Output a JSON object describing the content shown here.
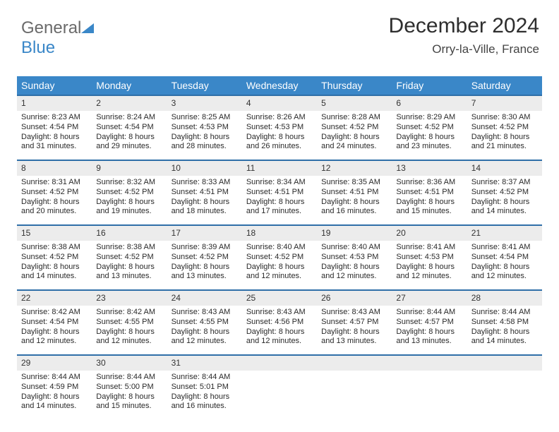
{
  "brand": {
    "part1": "General",
    "part2": "Blue"
  },
  "title": {
    "month": "December 2024",
    "location": "Orry-la-Ville, France"
  },
  "colors": {
    "header_bg": "#3a87c8",
    "header_fg": "#ffffff",
    "week_border": "#2f6fa8",
    "daynum_bg": "#ececec",
    "text": "#2a2a2a"
  },
  "typography": {
    "title_fontsize": 30,
    "location_fontsize": 17,
    "header_fontsize": 14,
    "body_fontsize": 11
  },
  "weekdays": [
    "Sunday",
    "Monday",
    "Tuesday",
    "Wednesday",
    "Thursday",
    "Friday",
    "Saturday"
  ],
  "weeks": [
    [
      {
        "n": "1",
        "sr": "Sunrise: 8:23 AM",
        "ss": "Sunset: 4:54 PM",
        "d1": "Daylight: 8 hours",
        "d2": "and 31 minutes."
      },
      {
        "n": "2",
        "sr": "Sunrise: 8:24 AM",
        "ss": "Sunset: 4:54 PM",
        "d1": "Daylight: 8 hours",
        "d2": "and 29 minutes."
      },
      {
        "n": "3",
        "sr": "Sunrise: 8:25 AM",
        "ss": "Sunset: 4:53 PM",
        "d1": "Daylight: 8 hours",
        "d2": "and 28 minutes."
      },
      {
        "n": "4",
        "sr": "Sunrise: 8:26 AM",
        "ss": "Sunset: 4:53 PM",
        "d1": "Daylight: 8 hours",
        "d2": "and 26 minutes."
      },
      {
        "n": "5",
        "sr": "Sunrise: 8:28 AM",
        "ss": "Sunset: 4:52 PM",
        "d1": "Daylight: 8 hours",
        "d2": "and 24 minutes."
      },
      {
        "n": "6",
        "sr": "Sunrise: 8:29 AM",
        "ss": "Sunset: 4:52 PM",
        "d1": "Daylight: 8 hours",
        "d2": "and 23 minutes."
      },
      {
        "n": "7",
        "sr": "Sunrise: 8:30 AM",
        "ss": "Sunset: 4:52 PM",
        "d1": "Daylight: 8 hours",
        "d2": "and 21 minutes."
      }
    ],
    [
      {
        "n": "8",
        "sr": "Sunrise: 8:31 AM",
        "ss": "Sunset: 4:52 PM",
        "d1": "Daylight: 8 hours",
        "d2": "and 20 minutes."
      },
      {
        "n": "9",
        "sr": "Sunrise: 8:32 AM",
        "ss": "Sunset: 4:52 PM",
        "d1": "Daylight: 8 hours",
        "d2": "and 19 minutes."
      },
      {
        "n": "10",
        "sr": "Sunrise: 8:33 AM",
        "ss": "Sunset: 4:51 PM",
        "d1": "Daylight: 8 hours",
        "d2": "and 18 minutes."
      },
      {
        "n": "11",
        "sr": "Sunrise: 8:34 AM",
        "ss": "Sunset: 4:51 PM",
        "d1": "Daylight: 8 hours",
        "d2": "and 17 minutes."
      },
      {
        "n": "12",
        "sr": "Sunrise: 8:35 AM",
        "ss": "Sunset: 4:51 PM",
        "d1": "Daylight: 8 hours",
        "d2": "and 16 minutes."
      },
      {
        "n": "13",
        "sr": "Sunrise: 8:36 AM",
        "ss": "Sunset: 4:51 PM",
        "d1": "Daylight: 8 hours",
        "d2": "and 15 minutes."
      },
      {
        "n": "14",
        "sr": "Sunrise: 8:37 AM",
        "ss": "Sunset: 4:52 PM",
        "d1": "Daylight: 8 hours",
        "d2": "and 14 minutes."
      }
    ],
    [
      {
        "n": "15",
        "sr": "Sunrise: 8:38 AM",
        "ss": "Sunset: 4:52 PM",
        "d1": "Daylight: 8 hours",
        "d2": "and 14 minutes."
      },
      {
        "n": "16",
        "sr": "Sunrise: 8:38 AM",
        "ss": "Sunset: 4:52 PM",
        "d1": "Daylight: 8 hours",
        "d2": "and 13 minutes."
      },
      {
        "n": "17",
        "sr": "Sunrise: 8:39 AM",
        "ss": "Sunset: 4:52 PM",
        "d1": "Daylight: 8 hours",
        "d2": "and 13 minutes."
      },
      {
        "n": "18",
        "sr": "Sunrise: 8:40 AM",
        "ss": "Sunset: 4:52 PM",
        "d1": "Daylight: 8 hours",
        "d2": "and 12 minutes."
      },
      {
        "n": "19",
        "sr": "Sunrise: 8:40 AM",
        "ss": "Sunset: 4:53 PM",
        "d1": "Daylight: 8 hours",
        "d2": "and 12 minutes."
      },
      {
        "n": "20",
        "sr": "Sunrise: 8:41 AM",
        "ss": "Sunset: 4:53 PM",
        "d1": "Daylight: 8 hours",
        "d2": "and 12 minutes."
      },
      {
        "n": "21",
        "sr": "Sunrise: 8:41 AM",
        "ss": "Sunset: 4:54 PM",
        "d1": "Daylight: 8 hours",
        "d2": "and 12 minutes."
      }
    ],
    [
      {
        "n": "22",
        "sr": "Sunrise: 8:42 AM",
        "ss": "Sunset: 4:54 PM",
        "d1": "Daylight: 8 hours",
        "d2": "and 12 minutes."
      },
      {
        "n": "23",
        "sr": "Sunrise: 8:42 AM",
        "ss": "Sunset: 4:55 PM",
        "d1": "Daylight: 8 hours",
        "d2": "and 12 minutes."
      },
      {
        "n": "24",
        "sr": "Sunrise: 8:43 AM",
        "ss": "Sunset: 4:55 PM",
        "d1": "Daylight: 8 hours",
        "d2": "and 12 minutes."
      },
      {
        "n": "25",
        "sr": "Sunrise: 8:43 AM",
        "ss": "Sunset: 4:56 PM",
        "d1": "Daylight: 8 hours",
        "d2": "and 12 minutes."
      },
      {
        "n": "26",
        "sr": "Sunrise: 8:43 AM",
        "ss": "Sunset: 4:57 PM",
        "d1": "Daylight: 8 hours",
        "d2": "and 13 minutes."
      },
      {
        "n": "27",
        "sr": "Sunrise: 8:44 AM",
        "ss": "Sunset: 4:57 PM",
        "d1": "Daylight: 8 hours",
        "d2": "and 13 minutes."
      },
      {
        "n": "28",
        "sr": "Sunrise: 8:44 AM",
        "ss": "Sunset: 4:58 PM",
        "d1": "Daylight: 8 hours",
        "d2": "and 14 minutes."
      }
    ],
    [
      {
        "n": "29",
        "sr": "Sunrise: 8:44 AM",
        "ss": "Sunset: 4:59 PM",
        "d1": "Daylight: 8 hours",
        "d2": "and 14 minutes."
      },
      {
        "n": "30",
        "sr": "Sunrise: 8:44 AM",
        "ss": "Sunset: 5:00 PM",
        "d1": "Daylight: 8 hours",
        "d2": "and 15 minutes."
      },
      {
        "n": "31",
        "sr": "Sunrise: 8:44 AM",
        "ss": "Sunset: 5:01 PM",
        "d1": "Daylight: 8 hours",
        "d2": "and 16 minutes."
      },
      {
        "empty": true
      },
      {
        "empty": true
      },
      {
        "empty": true
      },
      {
        "empty": true
      }
    ]
  ]
}
